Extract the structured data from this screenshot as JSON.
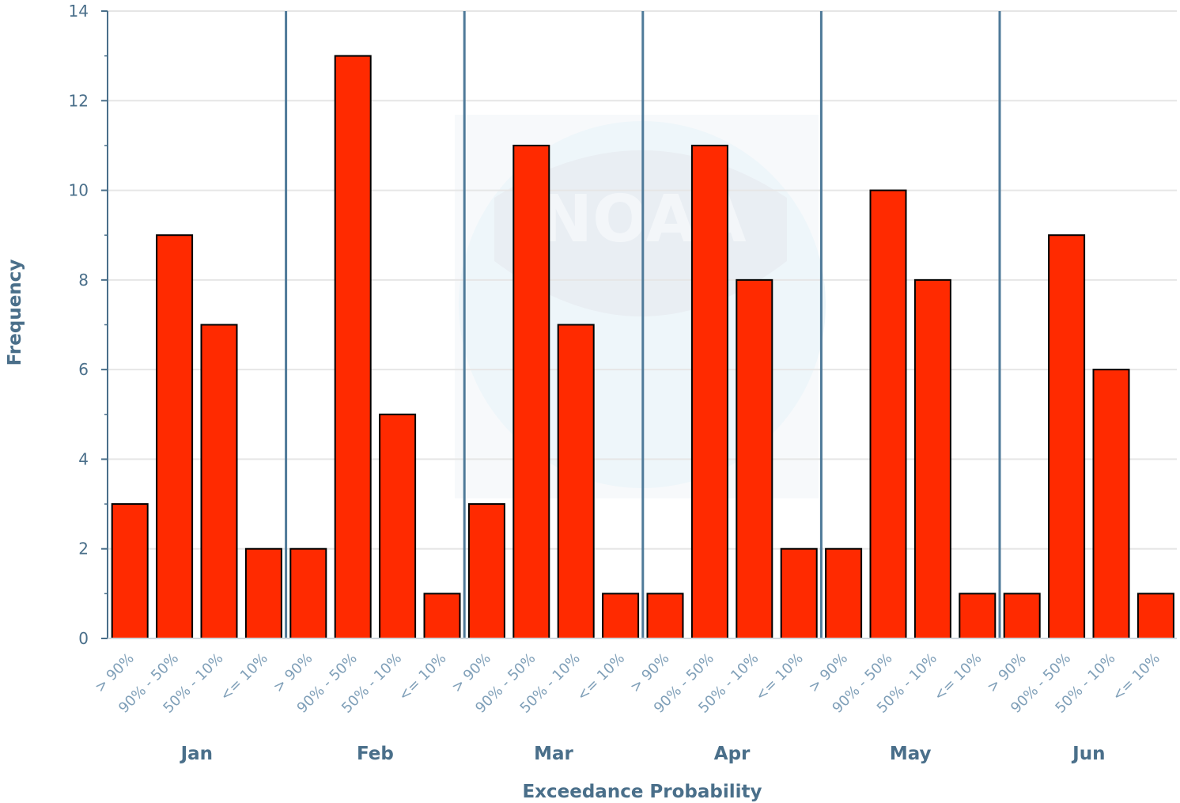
{
  "chart_data": {
    "type": "bar",
    "xlabel": "Exceedance Probability",
    "ylabel": "Frequency",
    "ylim": [
      0,
      14
    ],
    "yticks": [
      0,
      2,
      4,
      6,
      8,
      10,
      12,
      14
    ],
    "grid": true,
    "legend": "none",
    "bar_color": "#ff2a00",
    "groups": [
      {
        "name": "Jan",
        "categories": [
          "> 90%",
          "90% - 50%",
          "50% - 10%",
          "<= 10%"
        ],
        "values": [
          3,
          9,
          7,
          2
        ]
      },
      {
        "name": "Feb",
        "categories": [
          "> 90%",
          "90% - 50%",
          "50% - 10%",
          "<= 10%"
        ],
        "values": [
          2,
          13,
          5,
          1
        ]
      },
      {
        "name": "Mar",
        "categories": [
          "> 90%",
          "90% - 50%",
          "50% - 10%",
          "<= 10%"
        ],
        "values": [
          3,
          11,
          7,
          1
        ]
      },
      {
        "name": "Apr",
        "categories": [
          "> 90%",
          "90% - 50%",
          "50% - 10%",
          "<= 10%"
        ],
        "values": [
          1,
          11,
          8,
          2
        ]
      },
      {
        "name": "May",
        "categories": [
          "> 90%",
          "90% - 50%",
          "50% - 10%",
          "<= 10%"
        ],
        "values": [
          2,
          10,
          8,
          1
        ]
      },
      {
        "name": "Jun",
        "categories": [
          "> 90%",
          "90% - 50%",
          "50% - 10%",
          "<= 10%"
        ],
        "values": [
          1,
          9,
          6,
          1
        ]
      }
    ]
  },
  "watermark": {
    "text": "NOAA"
  },
  "colors": {
    "axis": "#4a6f8a",
    "gridline": "#e6e6e6",
    "separator": "#4f7a99"
  }
}
